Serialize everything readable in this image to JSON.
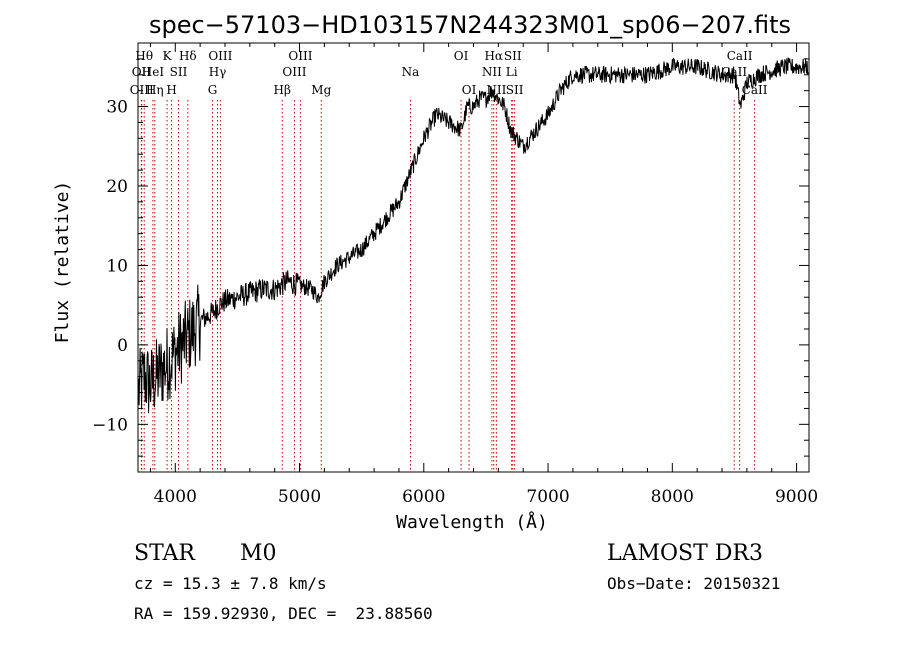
{
  "chart_data": {
    "type": "line",
    "title": "spec−57103−HD103157N244323M01_sp06−207.fits",
    "xlabel": "Wavelength (Å)",
    "ylabel": "Flux (relative)",
    "xlim": [
      3700,
      9100
    ],
    "ylim": [
      -16,
      38
    ],
    "x_ticks": [
      4000,
      5000,
      6000,
      7000,
      8000,
      9000
    ],
    "x_tick_labels": [
      "4000",
      "5000",
      "6000",
      "7000",
      "8000",
      "9000"
    ],
    "y_ticks": [
      -10,
      0,
      10,
      20,
      30
    ],
    "y_tick_labels": [
      "−10",
      "0",
      "10",
      "20",
      "30"
    ],
    "line_color": "#000000",
    "marker_color": "#cc0000",
    "spectrum_anchors": [
      [
        3700,
        -6
      ],
      [
        3750,
        -4
      ],
      [
        3800,
        -5
      ],
      [
        3850,
        -4
      ],
      [
        3900,
        -3
      ],
      [
        3950,
        -2
      ],
      [
        4000,
        -1
      ],
      [
        4050,
        0
      ],
      [
        4100,
        1
      ],
      [
        4150,
        2
      ],
      [
        4200,
        3
      ],
      [
        4250,
        3.5
      ],
      [
        4300,
        4
      ],
      [
        4350,
        5
      ],
      [
        4400,
        5.5
      ],
      [
        4500,
        6
      ],
      [
        4600,
        6.5
      ],
      [
        4700,
        7
      ],
      [
        4800,
        7
      ],
      [
        4900,
        8
      ],
      [
        5000,
        7.5
      ],
      [
        5100,
        7
      ],
      [
        5150,
        6
      ],
      [
        5200,
        8
      ],
      [
        5300,
        10
      ],
      [
        5400,
        11
      ],
      [
        5500,
        12
      ],
      [
        5600,
        14
      ],
      [
        5700,
        16
      ],
      [
        5800,
        18
      ],
      [
        5900,
        22
      ],
      [
        6000,
        26
      ],
      [
        6100,
        29
      ],
      [
        6200,
        28
      ],
      [
        6300,
        27
      ],
      [
        6350,
        30
      ],
      [
        6400,
        30
      ],
      [
        6450,
        31
      ],
      [
        6500,
        31
      ],
      [
        6550,
        32
      ],
      [
        6600,
        31
      ],
      [
        6650,
        30
      ],
      [
        6700,
        27
      ],
      [
        6750,
        26
      ],
      [
        6800,
        25
      ],
      [
        6850,
        26
      ],
      [
        6900,
        27
      ],
      [
        7000,
        29
      ],
      [
        7100,
        32
      ],
      [
        7200,
        34
      ],
      [
        7400,
        34
      ],
      [
        7600,
        34
      ],
      [
        7800,
        34
      ],
      [
        8000,
        35
      ],
      [
        8200,
        35
      ],
      [
        8400,
        34
      ],
      [
        8500,
        34
      ],
      [
        8550,
        30
      ],
      [
        8600,
        33
      ],
      [
        8700,
        34
      ],
      [
        8900,
        35
      ],
      [
        9000,
        35
      ],
      [
        9100,
        35
      ]
    ],
    "line_markers": [
      {
        "wave": 3750,
        "label": "Hθ",
        "row": 0
      },
      {
        "wave": 3727,
        "label": "OII",
        "row": 1
      },
      {
        "wave": 3730,
        "label": "OIII",
        "row": 2
      },
      {
        "wave": 3835,
        "label": "Hη",
        "row": 2
      },
      {
        "wave": 3820,
        "label": "HeI",
        "row": 1
      },
      {
        "wave": 3934,
        "label": "K",
        "row": 0
      },
      {
        "wave": 3970,
        "label": "H",
        "row": 2
      },
      {
        "wave": 4026,
        "label": "SII",
        "row": 1
      },
      {
        "wave": 4101,
        "label": "Hδ",
        "row": 0
      },
      {
        "wave": 4300,
        "label": "G",
        "row": 2
      },
      {
        "wave": 4340,
        "label": "Hγ",
        "row": 1
      },
      {
        "wave": 4363,
        "label": "OIII",
        "row": 0
      },
      {
        "wave": 4861,
        "label": "Hβ",
        "row": 2
      },
      {
        "wave": 4959,
        "label": "OIII",
        "row": 1
      },
      {
        "wave": 5007,
        "label": "OIII",
        "row": 0
      },
      {
        "wave": 5175,
        "label": "Mg",
        "row": 2
      },
      {
        "wave": 5893,
        "label": "Na",
        "row": 1
      },
      {
        "wave": 6300,
        "label": "OI",
        "row": 0
      },
      {
        "wave": 6364,
        "label": "OI",
        "row": 2
      },
      {
        "wave": 6548,
        "label": "NII",
        "row": 1
      },
      {
        "wave": 6563,
        "label": "Hα",
        "row": 0
      },
      {
        "wave": 6584,
        "label": "NII",
        "row": 2
      },
      {
        "wave": 6707,
        "label": "Li",
        "row": 1
      },
      {
        "wave": 6716,
        "label": "SII",
        "row": 0
      },
      {
        "wave": 6731,
        "label": "SII",
        "row": 2
      },
      {
        "wave": 8498,
        "label": "CaII",
        "row": 1
      },
      {
        "wave": 8542,
        "label": "CaII",
        "row": 0
      },
      {
        "wave": 8662,
        "label": "CaII",
        "row": 2
      }
    ]
  },
  "info": {
    "object_class": "STAR",
    "subclass": "M0",
    "survey": "LAMOST DR3",
    "cz": "cz = 15.3 ± 7.8 km/s",
    "obs_date": "Obs−Date: 20150321",
    "coords": "RA = 159.92930, DEC =  23.88560"
  }
}
